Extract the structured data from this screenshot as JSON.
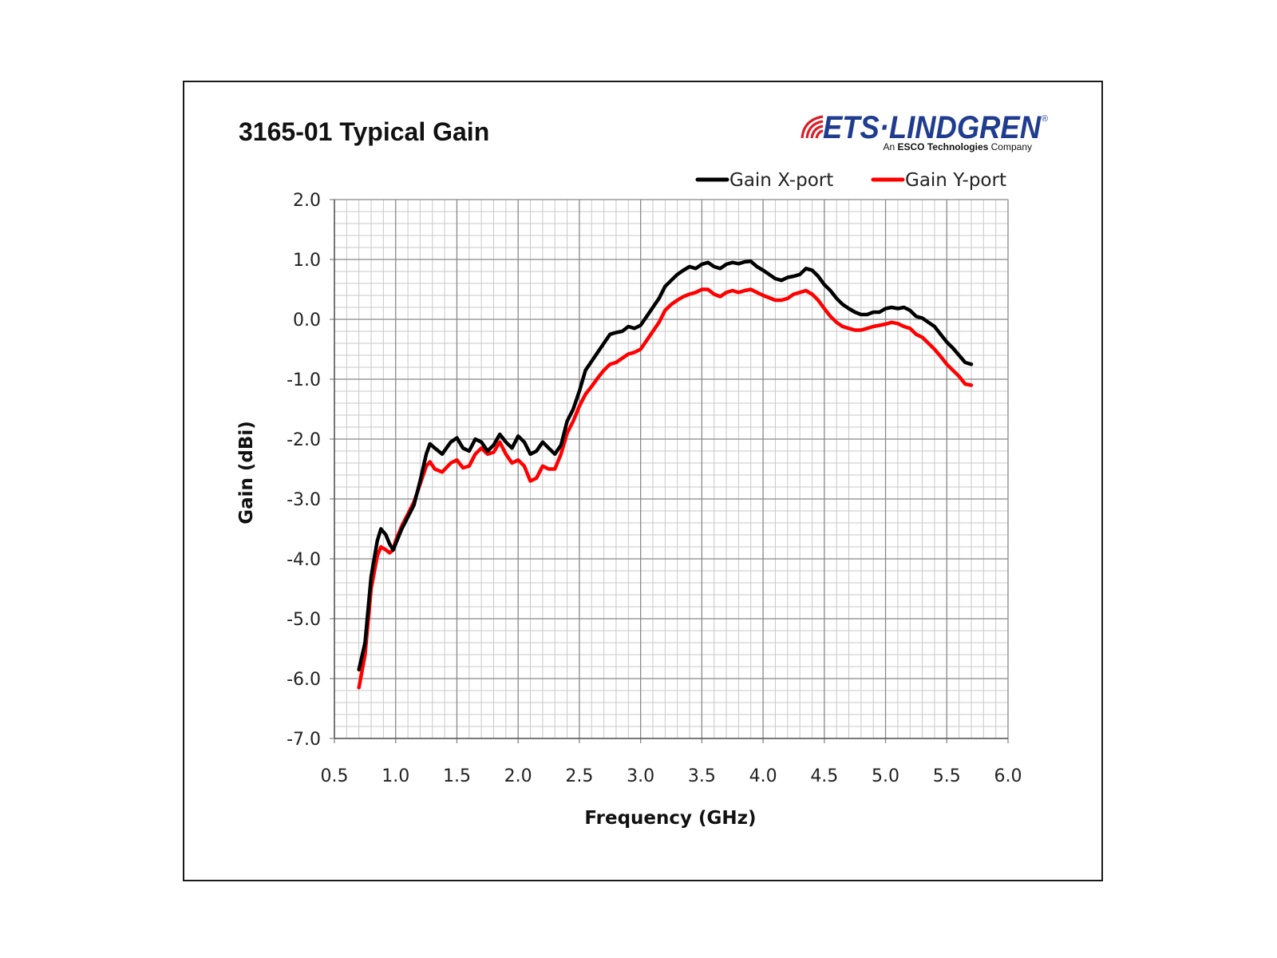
{
  "chart_data": {
    "type": "line",
    "title": "3165-01 Typical Gain",
    "xlabel": "Frequency (GHz)",
    "ylabel": "Gain (dBi)",
    "xlim": [
      0.5,
      6.0
    ],
    "ylim": [
      -7.0,
      2.0
    ],
    "x_ticks": [
      "0.5",
      "1.0",
      "1.5",
      "2.0",
      "2.5",
      "3.0",
      "3.5",
      "4.0",
      "4.5",
      "5.0",
      "5.5",
      "6.0"
    ],
    "y_ticks": [
      "2.0",
      "1.0",
      "0.0",
      "-1.0",
      "-2.0",
      "-3.0",
      "-4.0",
      "-5.0",
      "-6.0",
      "-7.0"
    ],
    "grid": true,
    "legend_position": "top-right",
    "series": [
      {
        "name": "Gain X-port",
        "color": "#000000",
        "points": [
          [
            0.7,
            -5.85
          ],
          [
            0.75,
            -5.4
          ],
          [
            0.8,
            -4.3
          ],
          [
            0.85,
            -3.7
          ],
          [
            0.88,
            -3.5
          ],
          [
            0.92,
            -3.6
          ],
          [
            0.95,
            -3.75
          ],
          [
            0.98,
            -3.85
          ],
          [
            1.0,
            -3.75
          ],
          [
            1.05,
            -3.5
          ],
          [
            1.1,
            -3.3
          ],
          [
            1.15,
            -3.1
          ],
          [
            1.2,
            -2.7
          ],
          [
            1.25,
            -2.25
          ],
          [
            1.28,
            -2.08
          ],
          [
            1.32,
            -2.15
          ],
          [
            1.38,
            -2.25
          ],
          [
            1.45,
            -2.05
          ],
          [
            1.5,
            -1.98
          ],
          [
            1.55,
            -2.15
          ],
          [
            1.6,
            -2.2
          ],
          [
            1.65,
            -2.0
          ],
          [
            1.7,
            -2.05
          ],
          [
            1.75,
            -2.2
          ],
          [
            1.8,
            -2.1
          ],
          [
            1.85,
            -1.92
          ],
          [
            1.9,
            -2.05
          ],
          [
            1.95,
            -2.15
          ],
          [
            2.0,
            -1.95
          ],
          [
            2.05,
            -2.05
          ],
          [
            2.1,
            -2.25
          ],
          [
            2.15,
            -2.2
          ],
          [
            2.2,
            -2.05
          ],
          [
            2.25,
            -2.15
          ],
          [
            2.3,
            -2.25
          ],
          [
            2.35,
            -2.1
          ],
          [
            2.4,
            -1.7
          ],
          [
            2.45,
            -1.5
          ],
          [
            2.5,
            -1.2
          ],
          [
            2.55,
            -0.85
          ],
          [
            2.6,
            -0.7
          ],
          [
            2.65,
            -0.55
          ],
          [
            2.7,
            -0.4
          ],
          [
            2.75,
            -0.25
          ],
          [
            2.8,
            -0.22
          ],
          [
            2.85,
            -0.2
          ],
          [
            2.9,
            -0.12
          ],
          [
            2.95,
            -0.15
          ],
          [
            3.0,
            -0.1
          ],
          [
            3.05,
            0.05
          ],
          [
            3.1,
            0.2
          ],
          [
            3.15,
            0.35
          ],
          [
            3.2,
            0.55
          ],
          [
            3.25,
            0.65
          ],
          [
            3.3,
            0.75
          ],
          [
            3.35,
            0.82
          ],
          [
            3.4,
            0.88
          ],
          [
            3.45,
            0.85
          ],
          [
            3.5,
            0.92
          ],
          [
            3.55,
            0.95
          ],
          [
            3.6,
            0.88
          ],
          [
            3.65,
            0.85
          ],
          [
            3.7,
            0.92
          ],
          [
            3.75,
            0.95
          ],
          [
            3.8,
            0.93
          ],
          [
            3.85,
            0.96
          ],
          [
            3.9,
            0.97
          ],
          [
            3.95,
            0.88
          ],
          [
            4.0,
            0.82
          ],
          [
            4.05,
            0.75
          ],
          [
            4.1,
            0.68
          ],
          [
            4.15,
            0.65
          ],
          [
            4.2,
            0.7
          ],
          [
            4.25,
            0.72
          ],
          [
            4.3,
            0.75
          ],
          [
            4.35,
            0.85
          ],
          [
            4.4,
            0.82
          ],
          [
            4.45,
            0.72
          ],
          [
            4.5,
            0.58
          ],
          [
            4.55,
            0.48
          ],
          [
            4.6,
            0.35
          ],
          [
            4.65,
            0.25
          ],
          [
            4.7,
            0.18
          ],
          [
            4.75,
            0.12
          ],
          [
            4.8,
            0.08
          ],
          [
            4.85,
            0.08
          ],
          [
            4.9,
            0.12
          ],
          [
            4.95,
            0.12
          ],
          [
            5.0,
            0.18
          ],
          [
            5.05,
            0.2
          ],
          [
            5.1,
            0.18
          ],
          [
            5.15,
            0.2
          ],
          [
            5.2,
            0.15
          ],
          [
            5.25,
            0.05
          ],
          [
            5.3,
            0.02
          ],
          [
            5.35,
            -0.05
          ],
          [
            5.4,
            -0.12
          ],
          [
            5.45,
            -0.25
          ],
          [
            5.5,
            -0.38
          ],
          [
            5.55,
            -0.48
          ],
          [
            5.6,
            -0.6
          ],
          [
            5.65,
            -0.72
          ],
          [
            5.7,
            -0.75
          ]
        ]
      },
      {
        "name": "Gain Y-port",
        "color": "#ff0000",
        "points": [
          [
            0.7,
            -6.15
          ],
          [
            0.75,
            -5.6
          ],
          [
            0.8,
            -4.5
          ],
          [
            0.85,
            -3.95
          ],
          [
            0.88,
            -3.8
          ],
          [
            0.92,
            -3.85
          ],
          [
            0.95,
            -3.9
          ],
          [
            0.98,
            -3.85
          ],
          [
            1.0,
            -3.7
          ],
          [
            1.05,
            -3.45
          ],
          [
            1.1,
            -3.25
          ],
          [
            1.15,
            -3.05
          ],
          [
            1.2,
            -2.75
          ],
          [
            1.25,
            -2.45
          ],
          [
            1.28,
            -2.38
          ],
          [
            1.32,
            -2.5
          ],
          [
            1.38,
            -2.55
          ],
          [
            1.45,
            -2.4
          ],
          [
            1.5,
            -2.35
          ],
          [
            1.55,
            -2.48
          ],
          [
            1.6,
            -2.45
          ],
          [
            1.65,
            -2.25
          ],
          [
            1.7,
            -2.15
          ],
          [
            1.75,
            -2.25
          ],
          [
            1.8,
            -2.22
          ],
          [
            1.85,
            -2.05
          ],
          [
            1.9,
            -2.25
          ],
          [
            1.95,
            -2.4
          ],
          [
            2.0,
            -2.35
          ],
          [
            2.05,
            -2.45
          ],
          [
            2.1,
            -2.7
          ],
          [
            2.15,
            -2.65
          ],
          [
            2.2,
            -2.45
          ],
          [
            2.25,
            -2.5
          ],
          [
            2.3,
            -2.5
          ],
          [
            2.35,
            -2.25
          ],
          [
            2.4,
            -1.9
          ],
          [
            2.45,
            -1.7
          ],
          [
            2.5,
            -1.45
          ],
          [
            2.55,
            -1.25
          ],
          [
            2.6,
            -1.12
          ],
          [
            2.65,
            -0.98
          ],
          [
            2.7,
            -0.85
          ],
          [
            2.75,
            -0.75
          ],
          [
            2.8,
            -0.72
          ],
          [
            2.85,
            -0.65
          ],
          [
            2.9,
            -0.58
          ],
          [
            2.95,
            -0.55
          ],
          [
            3.0,
            -0.5
          ],
          [
            3.05,
            -0.35
          ],
          [
            3.1,
            -0.2
          ],
          [
            3.15,
            -0.05
          ],
          [
            3.2,
            0.15
          ],
          [
            3.25,
            0.25
          ],
          [
            3.3,
            0.32
          ],
          [
            3.35,
            0.38
          ],
          [
            3.4,
            0.42
          ],
          [
            3.45,
            0.45
          ],
          [
            3.5,
            0.5
          ],
          [
            3.55,
            0.5
          ],
          [
            3.6,
            0.42
          ],
          [
            3.65,
            0.38
          ],
          [
            3.7,
            0.45
          ],
          [
            3.75,
            0.48
          ],
          [
            3.8,
            0.45
          ],
          [
            3.85,
            0.48
          ],
          [
            3.9,
            0.5
          ],
          [
            3.95,
            0.45
          ],
          [
            4.0,
            0.4
          ],
          [
            4.05,
            0.36
          ],
          [
            4.1,
            0.32
          ],
          [
            4.15,
            0.32
          ],
          [
            4.2,
            0.35
          ],
          [
            4.25,
            0.42
          ],
          [
            4.3,
            0.45
          ],
          [
            4.35,
            0.48
          ],
          [
            4.4,
            0.42
          ],
          [
            4.45,
            0.32
          ],
          [
            4.5,
            0.18
          ],
          [
            4.55,
            0.05
          ],
          [
            4.6,
            -0.05
          ],
          [
            4.65,
            -0.12
          ],
          [
            4.7,
            -0.15
          ],
          [
            4.75,
            -0.18
          ],
          [
            4.8,
            -0.18
          ],
          [
            4.85,
            -0.15
          ],
          [
            4.9,
            -0.12
          ],
          [
            4.95,
            -0.1
          ],
          [
            5.0,
            -0.08
          ],
          [
            5.05,
            -0.05
          ],
          [
            5.1,
            -0.07
          ],
          [
            5.15,
            -0.12
          ],
          [
            5.2,
            -0.15
          ],
          [
            5.25,
            -0.25
          ],
          [
            5.3,
            -0.3
          ],
          [
            5.35,
            -0.4
          ],
          [
            5.4,
            -0.5
          ],
          [
            5.45,
            -0.62
          ],
          [
            5.5,
            -0.75
          ],
          [
            5.55,
            -0.85
          ],
          [
            5.6,
            -0.95
          ],
          [
            5.65,
            -1.08
          ],
          [
            5.7,
            -1.1
          ]
        ]
      }
    ]
  },
  "logo": {
    "brand": "ETS·LINDGREN",
    "registered": "®",
    "tagline_prefix": "An ",
    "tagline_bold": "ESCO Technologies",
    "tagline_suffix": " Company",
    "brand_color": "#1f3c8f",
    "accent_color": "#d91f2a"
  }
}
